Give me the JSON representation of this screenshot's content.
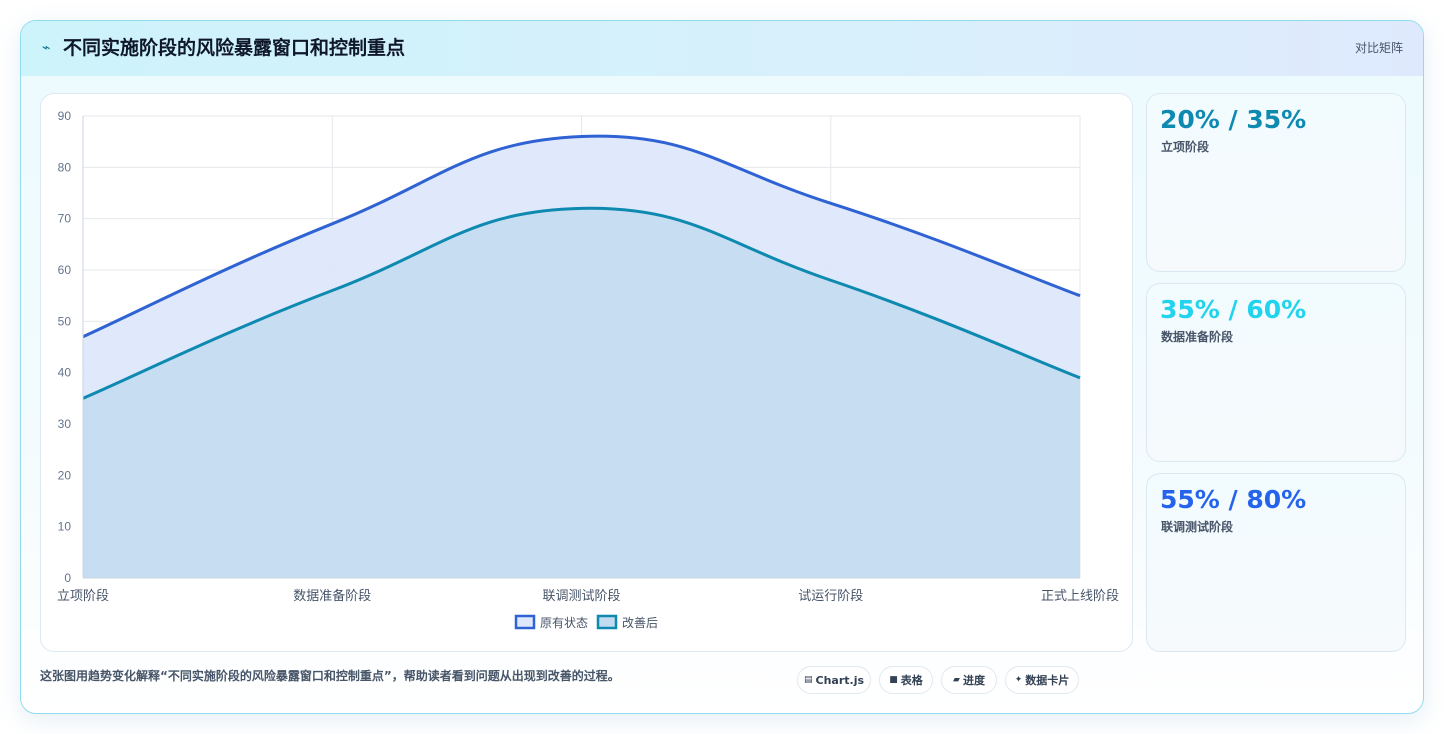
{
  "header": {
    "title": "不同实施阶段的风险暴露窗口和控制重点",
    "link_label": "对比矩阵"
  },
  "chart_data": {
    "type": "area",
    "categories": [
      "立项阶段",
      "数据准备阶段",
      "联调测试阶段",
      "试运行阶段",
      "正式上线阶段"
    ],
    "series": [
      {
        "name": "原有状态",
        "values": [
          47,
          69,
          86,
          73,
          55
        ],
        "color": "#2f62d3",
        "fill": "#dde8fb"
      },
      {
        "name": "改善后",
        "values": [
          35,
          56,
          72,
          58,
          39
        ],
        "color": "#0e89b0",
        "fill": "#c3dbf0"
      }
    ],
    "ylim": [
      0,
      90
    ],
    "yticks": [
      "0",
      "10",
      "20",
      "30",
      "40",
      "50",
      "60",
      "70",
      "80",
      "90"
    ],
    "grid": true,
    "legend": "bottom"
  },
  "stats": [
    {
      "value": "20% / 35%",
      "label": "立项阶段",
      "color": "#0e89b0"
    },
    {
      "value": "35% / 60%",
      "label": "数据准备阶段",
      "color": "#22d3ee"
    },
    {
      "value": "55% / 80%",
      "label": "联调测试阶段",
      "color": "#2563eb"
    }
  ],
  "footer": {
    "description": "这张图用趋势变化解释“不同实施阶段的风险暴露窗口和控制重点”，帮助读者看到问题从出现到改善的过程。",
    "chips": [
      {
        "icon": "chart-icon",
        "glyph": "▤",
        "label": "Chart.js"
      },
      {
        "icon": "table-icon",
        "glyph": "■",
        "label": "表格"
      },
      {
        "icon": "progress-icon",
        "glyph": "▰",
        "label": "进度"
      },
      {
        "icon": "sparkle-icon",
        "glyph": "✦",
        "label": "数据卡片"
      }
    ]
  }
}
